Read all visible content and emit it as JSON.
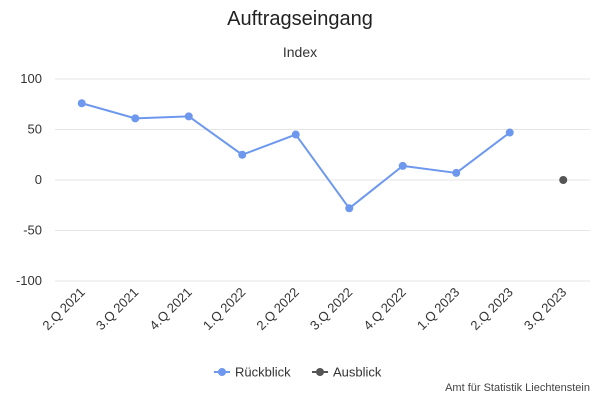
{
  "chart_data": {
    "type": "line",
    "title": "Auftragseingang",
    "subtitle": "Index",
    "categories": [
      "2.Q 2021",
      "3.Q 2021",
      "4.Q 2021",
      "1.Q 2022",
      "2.Q 2022",
      "3.Q 2022",
      "4.Q 2022",
      "1.Q 2023",
      "2.Q 2023",
      "3.Q 2023"
    ],
    "series": [
      {
        "name": "Rückblick",
        "color": "#6d98ee",
        "values": [
          76,
          61,
          63,
          25,
          45,
          -28,
          14,
          7,
          47,
          null
        ]
      },
      {
        "name": "Ausblick",
        "color": "#555555",
        "values": [
          null,
          null,
          null,
          null,
          null,
          null,
          null,
          null,
          null,
          0
        ]
      }
    ],
    "yticks": [
      100,
      50,
      0,
      -50,
      -100
    ],
    "ylim": [
      -100,
      100
    ],
    "grid": true,
    "legend_position": "bottom-center"
  },
  "credit": "Amt für Statistik Liechtenstein"
}
